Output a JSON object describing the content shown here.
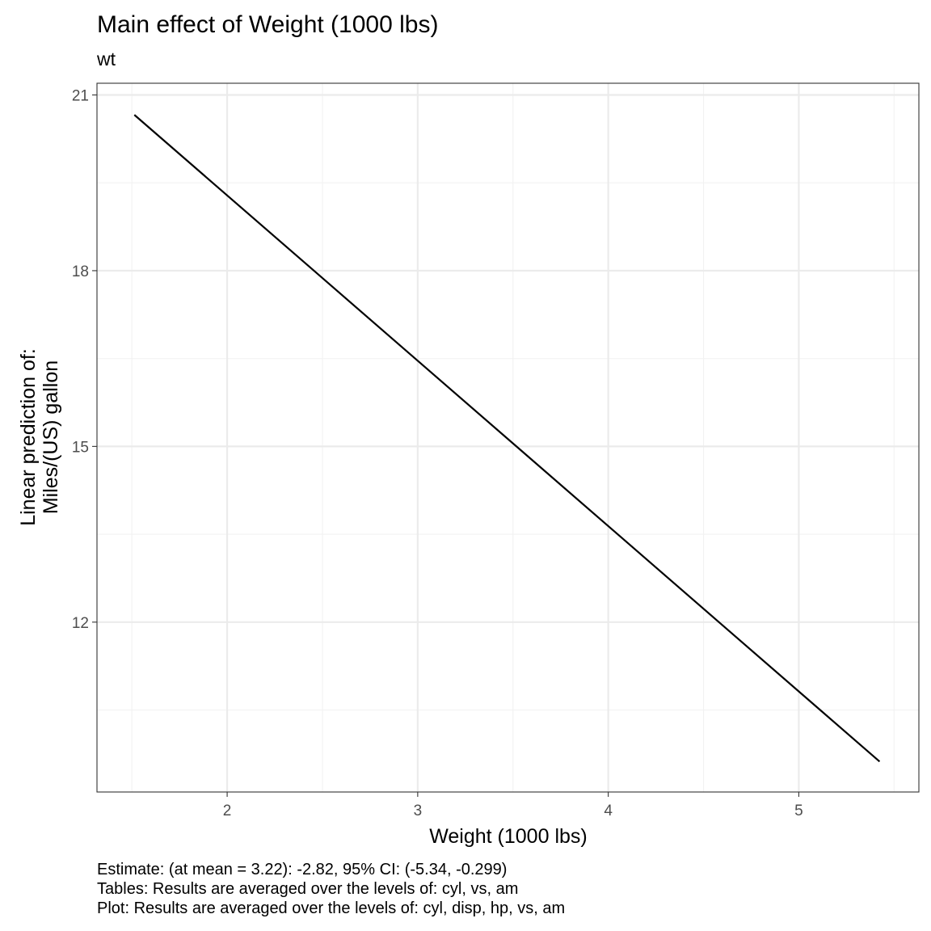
{
  "chart_data": {
    "type": "line",
    "title": "Main effect of Weight (1000 lbs)",
    "subtitle": "wt",
    "xlabel": "Weight (1000 lbs)",
    "ylabel_lines": [
      "Linear prediction of:",
      "Miles/(US) gallon"
    ],
    "xlim": [
      1.3168,
      5.6302
    ],
    "ylim": [
      9.1,
      21.2
    ],
    "x_ticks": [
      2,
      3,
      4,
      5
    ],
    "y_ticks": [
      12,
      15,
      18,
      21
    ],
    "grid": true,
    "series": [
      {
        "x": [
          1.513,
          5.424
        ],
        "y": [
          20.66,
          9.62
        ],
        "color": "#000000"
      }
    ],
    "caption": [
      "Estimate: (at mean = 3.22): -2.82, 95% CI: (-5.34, -0.299)",
      "Tables: Results are averaged over the levels of: cyl, vs, am",
      "Plot: Results are averaged over the levels of: cyl, disp, hp, vs, am"
    ]
  }
}
